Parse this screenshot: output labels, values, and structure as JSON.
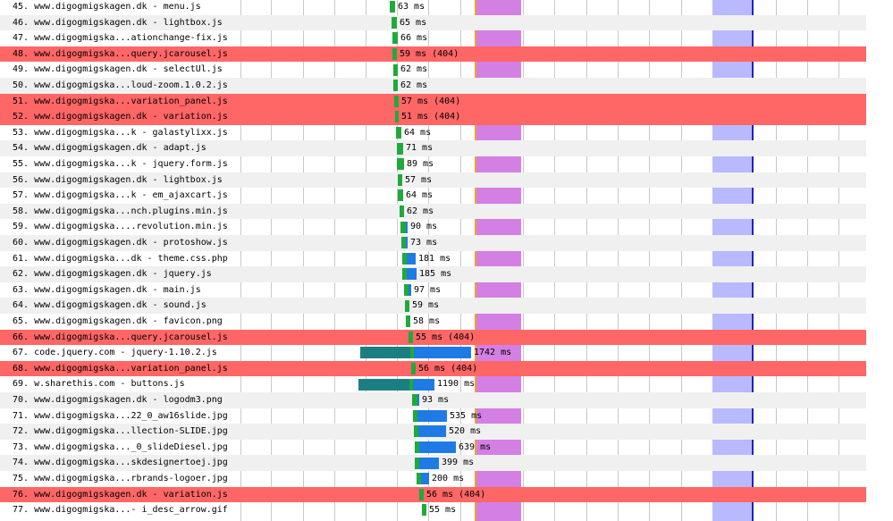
{
  "colors": {
    "alt_row": "#f0f0f0",
    "error_row": "#ff6666",
    "ttfb": "#1faa3a",
    "download": "#1e7be6",
    "dns_connect": "#1b7f82",
    "start_render": "#d47fe3",
    "dom_complete": "#b9b9ff",
    "doc_complete_line": "#2222bb",
    "render_line": "#f0a030"
  },
  "requests": [
    {
      "label": "45. www.digogmigskagen.dk - menu.js",
      "time": "63 ms",
      "status": "",
      "error": false
    },
    {
      "label": "46. www.digogmigskagen.dk - lightbox.js",
      "time": "65 ms",
      "status": "",
      "error": false
    },
    {
      "label": "47. www.digogmigska...ationchange-fix.js",
      "time": "66 ms",
      "status": "",
      "error": false
    },
    {
      "label": "48. www.digogmigska...query.jcarousel.js",
      "time": "59 ms",
      "status": "(404)",
      "error": true
    },
    {
      "label": "49. www.digogmigskagen.dk - selectUl.js",
      "time": "62 ms",
      "status": "",
      "error": false
    },
    {
      "label": "50. www.digogmigska...loud-zoom.1.0.2.js",
      "time": "62 ms",
      "status": "",
      "error": false
    },
    {
      "label": "51. www.digogmigska...variation_panel.js",
      "time": "57 ms",
      "status": "(404)",
      "error": true
    },
    {
      "label": "52. www.digogmigskagen.dk - variation.js",
      "time": "51 ms",
      "status": "(404)",
      "error": true
    },
    {
      "label": "53. www.digogmigska...k - galastylixx.js",
      "time": "64 ms",
      "status": "",
      "error": false
    },
    {
      "label": "54. www.digogmigskagen.dk - adapt.js",
      "time": "71 ms",
      "status": "",
      "error": false
    },
    {
      "label": "55. www.digogmigska...k - jquery.form.js",
      "time": "89 ms",
      "status": "",
      "error": false
    },
    {
      "label": "56. www.digogmigskagen.dk - lightbox.js",
      "time": "57 ms",
      "status": "",
      "error": false
    },
    {
      "label": "57. www.digogmigska...k - em_ajaxcart.js",
      "time": "64 ms",
      "status": "",
      "error": false
    },
    {
      "label": "58. www.digogmigska...nch.plugins.min.js",
      "time": "62 ms",
      "status": "",
      "error": false
    },
    {
      "label": "59. www.digogmigska....revolution.min.js",
      "time": "90 ms",
      "status": "",
      "error": false
    },
    {
      "label": "60. www.digogmigskagen.dk - protoshow.js",
      "time": "73 ms",
      "status": "",
      "error": false
    },
    {
      "label": "61. www.digogmigska...dk - theme.css.php",
      "time": "181 ms",
      "status": "",
      "error": false
    },
    {
      "label": "62. www.digogmigskagen.dk - jquery.js",
      "time": "185 ms",
      "status": "",
      "error": false
    },
    {
      "label": "63. www.digogmigskagen.dk - main.js",
      "time": "97 ms",
      "status": "",
      "error": false
    },
    {
      "label": "64. www.digogmigskagen.dk - sound.js",
      "time": "59 ms",
      "status": "",
      "error": false
    },
    {
      "label": "65. www.digogmigskagen.dk - favicon.png",
      "time": "58 ms",
      "status": "",
      "error": false
    },
    {
      "label": "66. www.digogmigska...query.jcarousel.js",
      "time": "55 ms",
      "status": "(404)",
      "error": true
    },
    {
      "label": "67. code.jquery.com - jquery-1.10.2.js",
      "time": "1742 ms",
      "status": "",
      "error": false
    },
    {
      "label": "68. www.digogmigska...variation_panel.js",
      "time": "56 ms",
      "status": "(404)",
      "error": true
    },
    {
      "label": "69. w.sharethis.com - buttons.js",
      "time": "1190 ms",
      "status": "",
      "error": false
    },
    {
      "label": "70. www.digogmigskagen.dk - logodm3.png",
      "time": "93 ms",
      "status": "",
      "error": false
    },
    {
      "label": "71. www.digogmigska...22_0_aw16slide.jpg",
      "time": "535 ms",
      "status": "",
      "error": false
    },
    {
      "label": "72. www.digogmigska...llection-SLIDE.jpg",
      "time": "520 ms",
      "status": "",
      "error": false
    },
    {
      "label": "73. www.digogmigska..._0_slideDiesel.jpg",
      "time": "639 ms",
      "status": "",
      "error": false
    },
    {
      "label": "74. www.digogmigska...skdesignertoej.jpg",
      "time": "399 ms",
      "status": "",
      "error": false
    },
    {
      "label": "75. www.digogmigska...rbrands-logoer.jpg",
      "time": "200 ms",
      "status": "",
      "error": false
    },
    {
      "label": "76. www.digogmigskagen.dk - variation.js",
      "time": "56 ms",
      "status": "(404)",
      "error": true
    },
    {
      "label": "77. www.digogmigska...- i_desc_arrow.gif",
      "time": "55 ms",
      "status": "",
      "error": false
    }
  ]
}
